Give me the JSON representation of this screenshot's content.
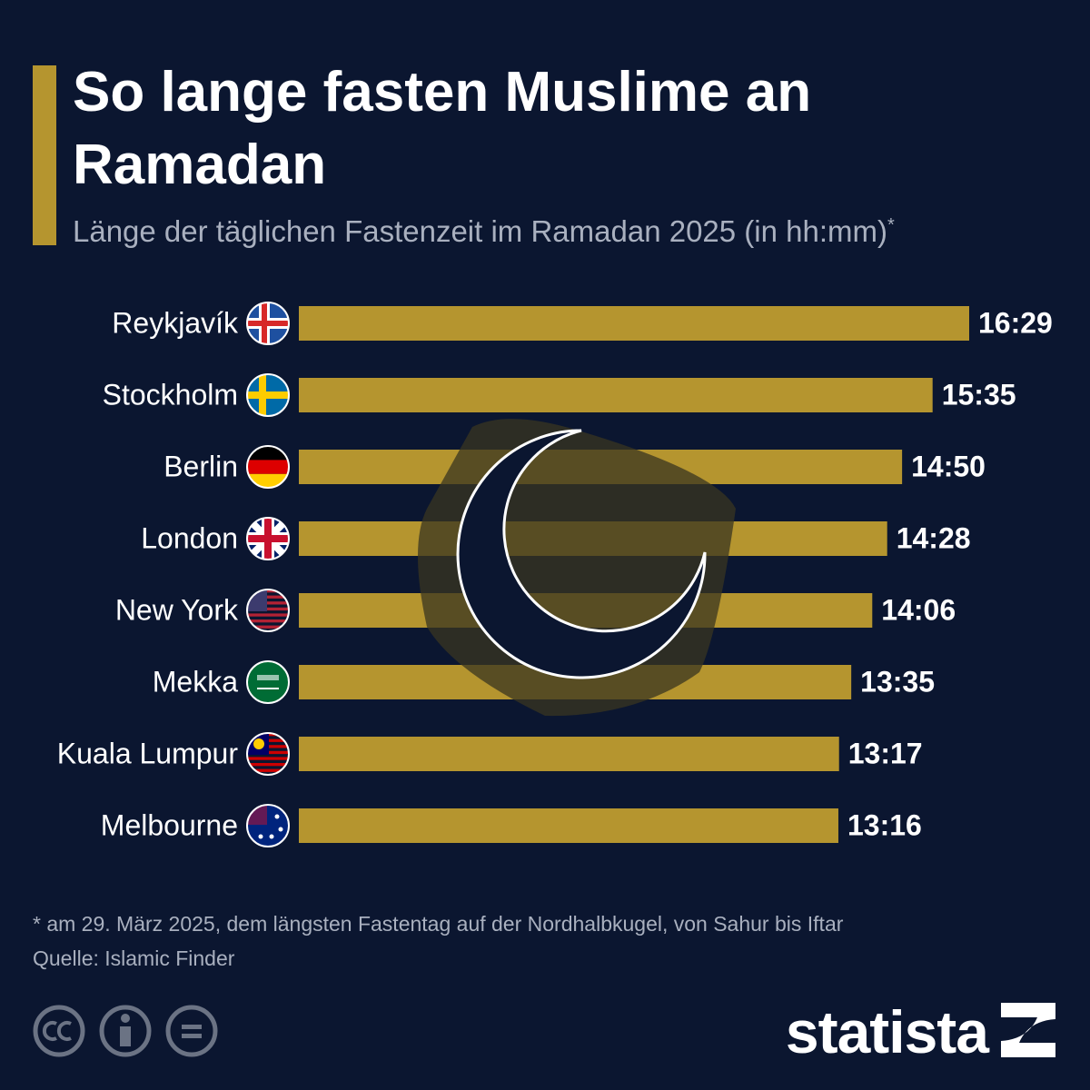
{
  "chart_data": {
    "type": "bar",
    "title": "So lange fasten Muslime an Ramadan",
    "subtitle": "Länge der täglichen Fastenzeit im Ramadan 2025 (in hh:mm)",
    "subtitle_note": "*",
    "categories": [
      "Reykjavík",
      "Stockholm",
      "Berlin",
      "London",
      "New York",
      "Mekka",
      "Kuala Lumpur",
      "Melbourne"
    ],
    "values": [
      989,
      935,
      890,
      868,
      846,
      815,
      797,
      796
    ],
    "value_labels": [
      "16:29",
      "15:35",
      "14:50",
      "14:28",
      "14:06",
      "13:35",
      "13:17",
      "13:16"
    ],
    "color": "#b5952f",
    "footnote": "* am 29. März 2025, dem längsten Fastentag auf der Nordhalbkugel, von Sahur bis Iftar",
    "source": "Quelle: Islamic Finder",
    "brand": "statista"
  }
}
